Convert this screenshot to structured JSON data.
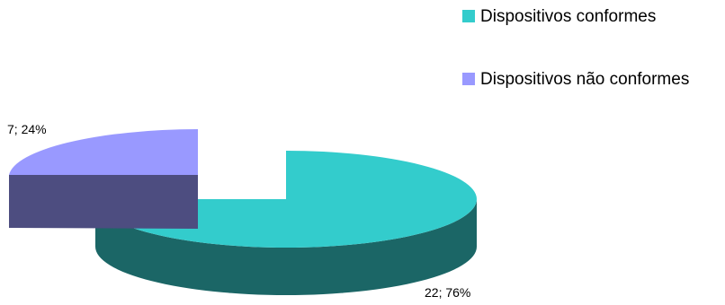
{
  "chart_data": {
    "type": "pie",
    "title": "",
    "style": "3d-exploded",
    "legend_position": "top-right",
    "slices": [
      {
        "name": "Dispositivos conformes",
        "value": 22,
        "percent": 76,
        "label": "22; 76%",
        "color": "#33CCCC",
        "side_color": "#1B6666"
      },
      {
        "name": "Dispositivos não conformes",
        "value": 7,
        "percent": 24,
        "label": "7; 24%",
        "color": "#9999FF",
        "side_color": "#4D4D80"
      }
    ]
  }
}
